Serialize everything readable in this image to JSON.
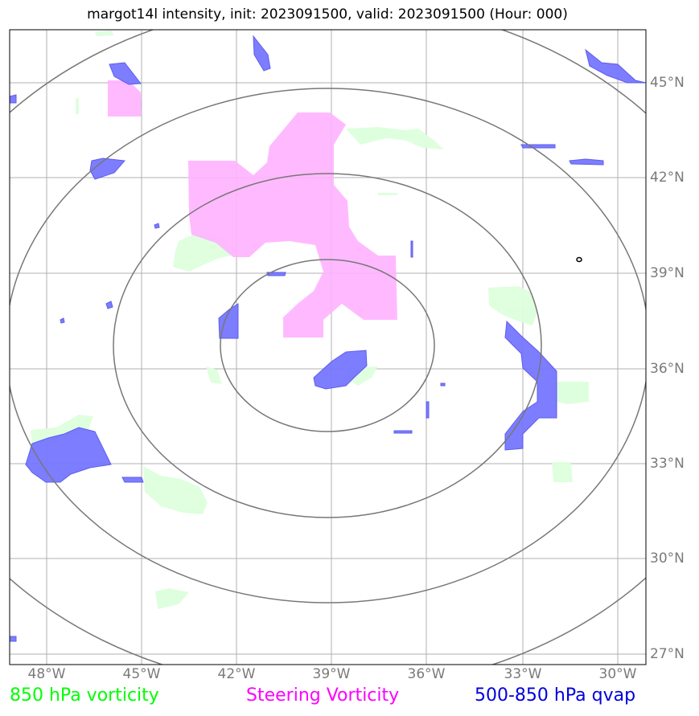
{
  "title": "margot14l intensity, init: 2023091500, valid: 2023091500 (Hour: 000)",
  "lon_labels": [
    {
      "lon": -48,
      "text": "48°W"
    },
    {
      "lon": -45,
      "text": "45°W"
    },
    {
      "lon": -42,
      "text": "42°W"
    },
    {
      "lon": -39,
      "text": "39°W"
    },
    {
      "lon": -36,
      "text": "36°W"
    },
    {
      "lon": -33,
      "text": "33°W"
    },
    {
      "lon": -30,
      "text": "30°W"
    }
  ],
  "lat_labels": [
    {
      "lat": 45,
      "text": "45°N"
    },
    {
      "lat": 42,
      "text": "42°N"
    },
    {
      "lat": 39,
      "text": "39°N"
    },
    {
      "lat": 36,
      "text": "36°N"
    },
    {
      "lat": 33,
      "text": "33°N"
    },
    {
      "lat": 30,
      "text": "30°N"
    },
    {
      "lat": 27,
      "text": "27°N"
    }
  ],
  "legend": [
    {
      "text": "850 hPa vorticity",
      "color": "#00ff00"
    },
    {
      "text": "Steering Vorticity",
      "color": "#ff00ff"
    },
    {
      "text": "500-850 hPa qvap",
      "color": "#0000dd"
    }
  ],
  "colors": {
    "vort850_fill": "#ddffdd",
    "steering_fill": "#ffb3ff",
    "qvap_fill": "#7777ff",
    "qvap_edge": "#5555ee",
    "grid": "#b0b0b0",
    "rings": "#777777"
  },
  "map_extent": {
    "lon_min": -49.2,
    "lon_max": -29.1,
    "lat_min": 26.7,
    "lat_max": 46.7
  },
  "range_rings": {
    "center": {
      "lon": -39.3,
      "lat": 36.8
    },
    "radii_deg": [
      3,
      6.7,
      10.3,
      14
    ]
  }
}
